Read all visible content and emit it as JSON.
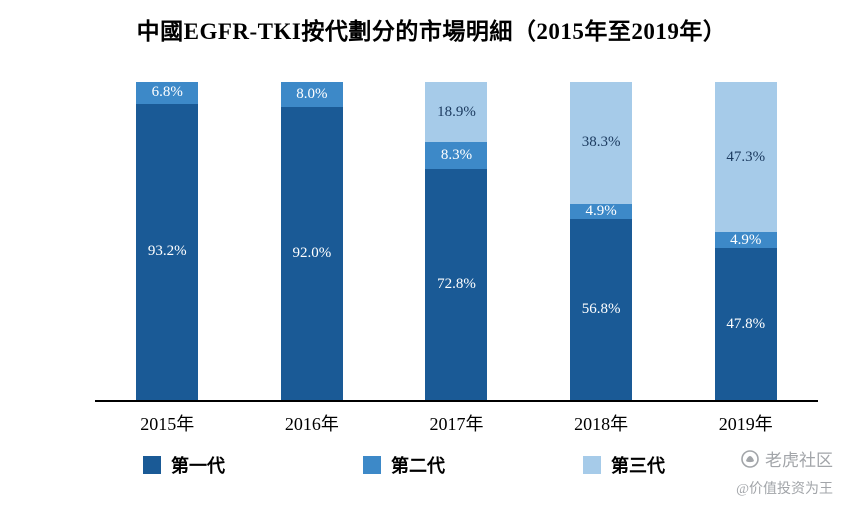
{
  "title": "中國EGFR-TKI按代劃分的市場明細（2015年至2019年）",
  "colors": {
    "gen1": "#1a5a96",
    "gen2": "#3d89c8",
    "gen3": "#a6cbe9",
    "axis": "#000000",
    "watermark_gray": "#a2a5a9"
  },
  "chart_data": {
    "type": "bar",
    "stacked": true,
    "percent": true,
    "title": "中國EGFR-TKI按代劃分的市場明細（2015年至2019年）",
    "categories": [
      "2015年",
      "2016年",
      "2017年",
      "2018年",
      "2019年"
    ],
    "series": [
      {
        "name": "第一代",
        "color_key": "gen1",
        "label_color": "#ffffff",
        "values": [
          93.2,
          92.0,
          72.8,
          56.8,
          47.8
        ]
      },
      {
        "name": "第二代",
        "color_key": "gen2",
        "label_color": "#ffffff",
        "values": [
          6.8,
          8.0,
          8.3,
          4.9,
          4.9
        ]
      },
      {
        "name": "第三代",
        "color_key": "gen3",
        "label_color": "#1b3a5f",
        "values": [
          0,
          0,
          18.9,
          38.3,
          47.3
        ]
      }
    ],
    "ylim": [
      0,
      100
    ],
    "grid": false,
    "legend_position": "bottom",
    "value_label_format": "one_decimal_percent"
  },
  "watermark": {
    "brand": "老虎社区",
    "handle": "@价值投资为王"
  }
}
